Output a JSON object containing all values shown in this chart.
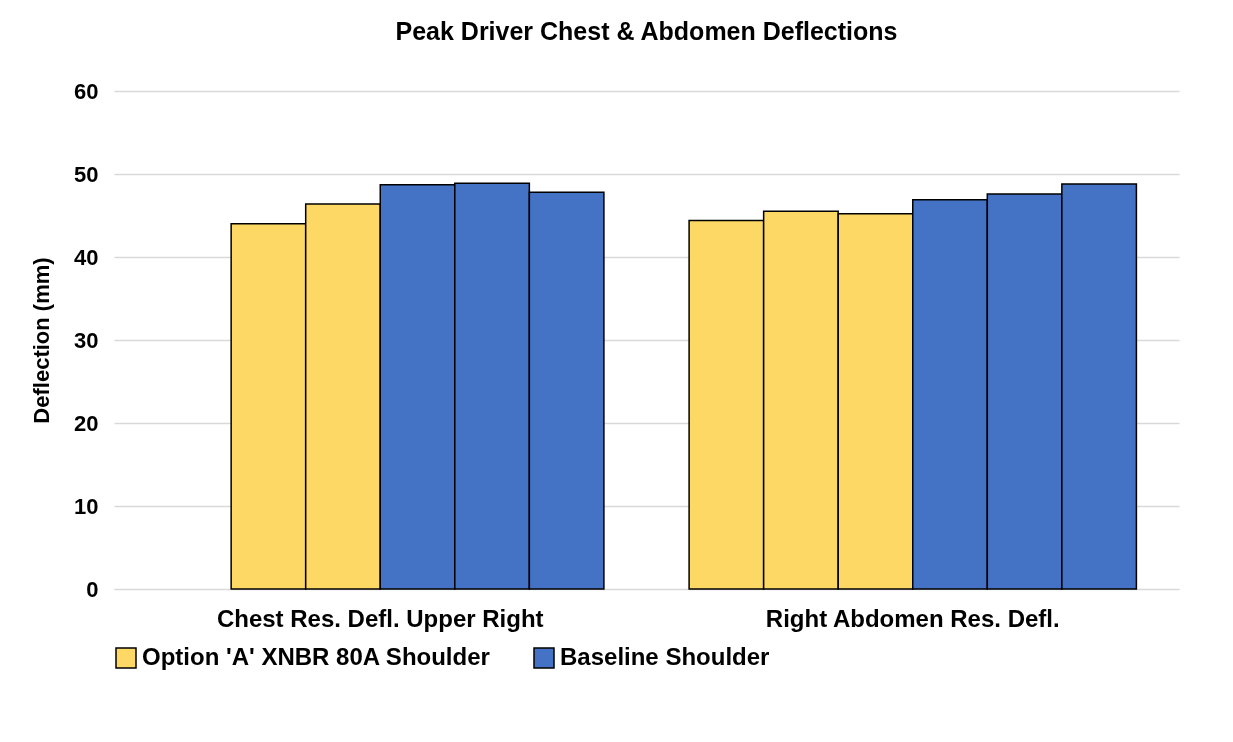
{
  "chart_data": {
    "type": "bar",
    "title": "Peak Driver Chest & Abdomen Deflections",
    "ylabel": "Deflection  (mm)",
    "categories": [
      "Chest Res. Defl. Upper Right",
      "Right Abdomen Res. Defl."
    ],
    "series": [
      {
        "name": "Option 'A' XNBR 80A Shoulder",
        "color": "#fdd865",
        "values": [
          null,
          44.4
        ]
      },
      {
        "color": "#fdd865",
        "values": [
          44.0,
          45.5
        ]
      },
      {
        "color": "#fdd865",
        "values": [
          46.4,
          45.2
        ]
      },
      {
        "name": "Baseline Shoulder",
        "color": "#4472c4",
        "values": [
          48.7,
          46.9
        ]
      },
      {
        "color": "#4472c4",
        "values": [
          48.9,
          47.6
        ]
      },
      {
        "color": "#4472c4",
        "values": [
          47.8,
          48.8
        ]
      }
    ],
    "ylim": [
      0,
      60
    ],
    "yticks": [
      0,
      10,
      20,
      30,
      40,
      50,
      60
    ],
    "grid": "y",
    "legend": "bottom"
  }
}
